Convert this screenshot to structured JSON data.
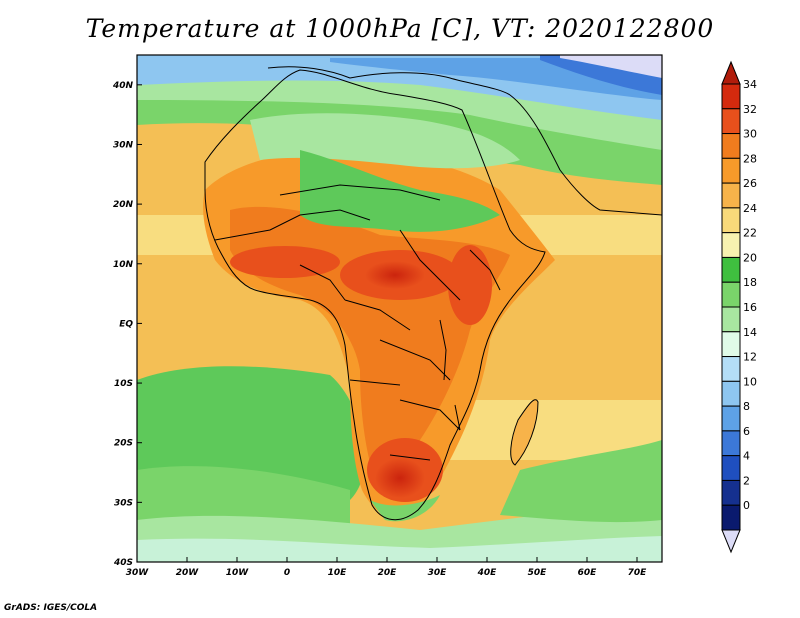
{
  "title": "Temperature at 1000hPa [C], VT: 2020122800",
  "footer": "GrADS: IGES/COLA",
  "map": {
    "region": "Africa",
    "lon_range": [
      -30,
      75
    ],
    "lat_range": [
      -40,
      45
    ],
    "lon_ticks": [
      "30W",
      "20W",
      "10W",
      "0",
      "10E",
      "20E",
      "30E",
      "40E",
      "50E",
      "60E",
      "70E"
    ],
    "lat_ticks": [
      "40N",
      "30N",
      "20N",
      "10N",
      "EQ",
      "10S",
      "20S",
      "30S",
      "40S"
    ]
  },
  "colorbar": {
    "levels": [
      "34",
      "32",
      "30",
      "28",
      "26",
      "24",
      "22",
      "20",
      "18",
      "16",
      "14",
      "12",
      "10",
      "8",
      "6",
      "4",
      "2",
      "0"
    ],
    "colors": [
      "#d42a0e",
      "#e8501c",
      "#f07c1e",
      "#f79a2a",
      "#f7b34a",
      "#f8d97a",
      "#f7f2b0",
      "#3fbf3f",
      "#7ad46a",
      "#a8e6a0",
      "#e0fbe8",
      "#b4def7",
      "#8ec6f0",
      "#5ea2e6",
      "#3c78d8",
      "#1f4fbf",
      "#15308f",
      "#0a1a6e"
    ],
    "top_arrow_color": "#b11c0b",
    "bottom_arrow_color": "#dcdcf7"
  }
}
